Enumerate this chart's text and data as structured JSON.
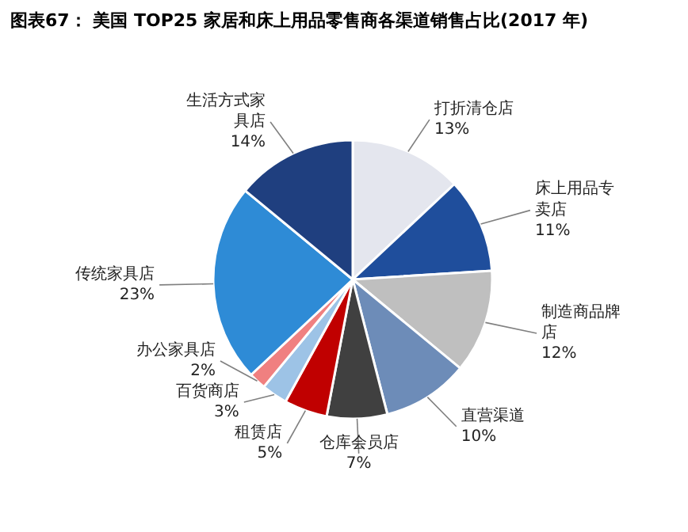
{
  "chart_data": {
    "type": "pie",
    "title": "图表67：  美国 TOP25 家居和床上用品零售商各渠道销售占比(2017 年)",
    "categories": [
      "打折清仓店",
      "床上用品专卖店",
      "制造商品牌店",
      "直营渠道",
      "仓库会员店",
      "租赁店",
      "百货商店",
      "办公家具店",
      "传统家具店",
      "生活方式家具店"
    ],
    "values": [
      13,
      11,
      12,
      10,
      7,
      5,
      3,
      2,
      23,
      14
    ],
    "value_labels": [
      "13%",
      "11%",
      "12%",
      "10%",
      "7%",
      "5%",
      "3%",
      "2%",
      "23%",
      "14%"
    ],
    "colors": [
      "#e4e6ee",
      "#1f4e9c",
      "#bfbfbf",
      "#6d8cb8",
      "#404040",
      "#c00000",
      "#9dc3e6",
      "#f08080",
      "#2e8bd6",
      "#1f3f7f"
    ]
  }
}
